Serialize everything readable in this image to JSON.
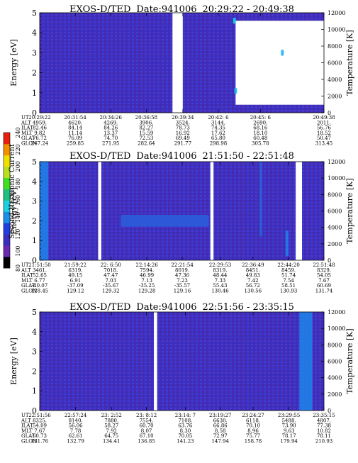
{
  "colorbar": {
    "label": "Second Harmonic Current",
    "ticks": [
      "80",
      "100",
      "120",
      "140",
      "160",
      "180",
      "200",
      "220",
      "240"
    ]
  },
  "panels": [
    {
      "title": "EXOS-D/TED",
      "date": "Date:941006",
      "time_range": "20:29:22 - 20:49:38",
      "ylabel": "Energy [eV]",
      "y2label": "Temperature [K]",
      "yticks": [
        "0",
        "1",
        "2",
        "3",
        "4",
        "5"
      ],
      "y2ticks": [
        "0",
        "2000",
        "4000",
        "6000",
        "8000",
        "10000",
        "12000"
      ],
      "info_rows": [
        {
          "label": "UT",
          "values": [
            "20:29:22",
            "20:31:54",
            "20:34:26",
            "20:36:58",
            "20:39:34",
            "20:42: 6",
            "20:45: 6",
            "20:49:38"
          ]
        },
        {
          "label": "ALT",
          "values": [
            "4959.",
            "4620.",
            "4269.",
            "3906.",
            "3524.",
            "3144.",
            "2690.",
            "2011."
          ]
        },
        {
          "label": "ILAT",
          "values": [
            "82.46",
            "84.14",
            "84.26",
            "82.27",
            "78.73",
            "74.35",
            "68.16",
            "56.76"
          ]
        },
        {
          "label": "MLT",
          "values": [
            "9.82",
            "11.14",
            "13.37",
            "15.59",
            "16.92",
            "17.62",
            "18.10",
            "18.52"
          ]
        },
        {
          "label": "GLAT",
          "values": [
            "76.72",
            "76.09",
            "74.70",
            "72.53",
            "69.49",
            "65.80",
            "60.48",
            "50.47"
          ]
        },
        {
          "label": "GLON",
          "values": [
            "247.24",
            "259.85",
            "271.95",
            "282.64",
            "291.77",
            "298.98",
            "305.78",
            "313.45"
          ]
        }
      ]
    },
    {
      "title": "EXOS-D/TED",
      "date": "Date:941006",
      "time_range": "21:51:50 - 22:51:48",
      "ylabel": "Energy [eV]",
      "y2label": "Temperature [K]",
      "yticks": [
        "0",
        "1",
        "2",
        "3",
        "4",
        "5"
      ],
      "y2ticks": [
        "0",
        "2000",
        "4000",
        "6000",
        "8000",
        "10000",
        "12000"
      ],
      "info_rows": [
        {
          "label": "UT",
          "values": [
            "21:51:50",
            "21:59:22",
            "22: 6:50",
            "22:14:26",
            "22:21:54",
            "22:29:53",
            "22:36:49",
            "22:44:20",
            "22:51:48"
          ]
        },
        {
          "label": "ALT",
          "values": [
            "3461.",
            "6319.",
            "7018.",
            "7594.",
            "8019.",
            "8319.",
            "8451.",
            "8459.",
            "8329."
          ]
        },
        {
          "label": "ILAT",
          "values": [
            "52.65",
            "49.15",
            "47.47",
            "46.99",
            "47.36",
            "48.44",
            "49.83",
            "51.74",
            "54.05"
          ]
        },
        {
          "label": "MLT",
          "values": [
            "6.77",
            "6.91",
            "7.03",
            "7.13",
            "7.23",
            "7.33",
            "7.42",
            "7.54",
            "7.67"
          ]
        },
        {
          "label": "GLAT",
          "values": [
            "-40.07",
            "-37.09",
            "-35.67",
            "-35.25",
            "-35.57",
            "55.43",
            "56.72",
            "58.51",
            "60.69"
          ]
        },
        {
          "label": "GLON",
          "values": [
            "128.45",
            "129.12",
            "129.32",
            "129.28",
            "129.16",
            "130.46",
            "130.56",
            "130.93",
            "131.74"
          ]
        }
      ]
    },
    {
      "title": "EXOS-D/TED",
      "date": "Date:941006",
      "time_range": "22:51:56 - 23:35:15",
      "ylabel": "Energy [eV]",
      "y2label": "Temperature [K]",
      "yticks": [
        "0",
        "1",
        "2",
        "3",
        "4",
        "5"
      ],
      "y2ticks": [
        "0",
        "2000",
        "4000",
        "6000",
        "8000",
        "10000",
        "12000"
      ],
      "info_rows": [
        {
          "label": "UT",
          "values": [
            "22:51:56",
            "22:57:24",
            "23: 2:52",
            "23: 8:12",
            "23:14: 7",
            "23:19:27",
            "23:24:27",
            "23:29:55",
            "23:35:15"
          ]
        },
        {
          "label": "ALT",
          "values": [
            "8325.",
            "8140.",
            "7880.",
            "7554.",
            "7108.",
            "6630.",
            "6118.",
            "5488.",
            "4807."
          ]
        },
        {
          "label": "ILAT",
          "values": [
            "54.09",
            "56.06",
            "58.27",
            "60.70",
            "63.76",
            "66.86",
            "70.10",
            "73.90",
            "77.38"
          ]
        },
        {
          "label": "MLT",
          "values": [
            "7.67",
            "7.78",
            "7.92",
            "8.07",
            "8.30",
            "8.58",
            "8.96",
            "9.63",
            "10.82"
          ]
        },
        {
          "label": "GLAT",
          "values": [
            "60.73",
            "62.61",
            "64.75",
            "67.10",
            "70.05",
            "72.97",
            "75.77",
            "78.17",
            "78.11"
          ]
        },
        {
          "label": "GLON",
          "values": [
            "131.76",
            "132.79",
            "134.41",
            "136.85",
            "141.23",
            "147.94",
            "158.78",
            "179.94",
            "210.93"
          ]
        }
      ]
    }
  ],
  "chart_data": [
    {
      "type": "heatmap",
      "title": "EXOS-D/TED Date:941006 20:29:22 - 20:49:38",
      "xlabel": "",
      "ylabel": "Energy [eV]",
      "y2label": "Temperature [K]",
      "ylim": [
        0,
        5
      ],
      "y2lim": [
        0,
        12000
      ],
      "x_tick_labels": [
        "20:29:22",
        "20:31:54",
        "20:34:26",
        "20:36:58",
        "20:39:34",
        "20:42: 6",
        "20:45: 6",
        "20:49:38"
      ],
      "colorbar": {
        "label": "Second Harmonic Current",
        "range": [
          80,
          240
        ]
      },
      "data_gaps_ut": [
        [
          "20:38:50",
          "20:39:34"
        ]
      ],
      "background_level": 145,
      "features": [
        {
          "description": "no data (white) from ~20:43 onward over much of energy range",
          "ut_start": "20:43:20",
          "ut_end": "20:49:38",
          "energy_range": [
            0.4,
            4.6
          ],
          "value": null
        },
        {
          "description": "enhancement near 20:43",
          "ut": "20:43:15",
          "energy": 4.6,
          "value": 225
        },
        {
          "description": "enhancement near 20:46",
          "ut": "20:46:40",
          "energy": 3.0,
          "value": 205
        },
        {
          "description": "enhancement near 20:43:20 low energy",
          "ut": "20:43:20",
          "energy": 1.1,
          "value": 200
        }
      ]
    },
    {
      "type": "heatmap",
      "title": "EXOS-D/TED Date:941006 21:51:50 - 22:51:48",
      "xlabel": "",
      "ylabel": "Energy [eV]",
      "y2label": "Temperature [K]",
      "ylim": [
        0,
        5
      ],
      "y2lim": [
        0,
        12000
      ],
      "x_tick_labels": [
        "21:51:50",
        "21:59:22",
        "22: 6:50",
        "22:14:26",
        "22:21:54",
        "22:29:53",
        "22:36:49",
        "22:44:20",
        "22:51:48"
      ],
      "colorbar": {
        "label": "Second Harmonic Current",
        "range": [
          80,
          240
        ]
      },
      "data_gaps_ut": [
        [
          "22:04:10",
          "22:04:50"
        ],
        [
          "22:27:50",
          "22:28:30"
        ],
        [
          "22:45:50",
          "22:47:10"
        ]
      ],
      "background_level": 145,
      "features": [
        {
          "description": "enhanced band at start of pass",
          "ut_start": "21:51:50",
          "ut_end": "21:53:40",
          "energy_range": [
            0,
            5
          ],
          "value": 175
        },
        {
          "description": "enhanced band near 2 eV",
          "ut_start": "22:09:00",
          "ut_end": "22:27:30",
          "energy_range": [
            1.7,
            2.3
          ],
          "value": 160
        },
        {
          "description": "enhancement near 22:38",
          "ut": "22:38:30",
          "energy_range": [
            1.2,
            5
          ],
          "value": 165
        },
        {
          "description": "enhancement near 22:44",
          "ut": "22:44:00",
          "energy_range": [
            0.2,
            1.5
          ],
          "value": 175
        }
      ]
    },
    {
      "type": "heatmap",
      "title": "EXOS-D/TED Date:941006 22:51:56 - 23:35:15",
      "xlabel": "",
      "ylabel": "Energy [eV]",
      "y2label": "Temperature [K]",
      "ylim": [
        0,
        5
      ],
      "y2lim": [
        0,
        12000
      ],
      "x_tick_labels": [
        "22:51:56",
        "22:57:24",
        "23: 2:52",
        "23: 8:12",
        "23:14: 7",
        "23:19:27",
        "23:24:27",
        "23:29:55",
        "23:35:15"
      ],
      "colorbar": {
        "label": "Second Harmonic Current",
        "range": [
          80,
          240
        ]
      },
      "data_gaps_ut": [
        [
          "23:09:20",
          "23:09:50"
        ]
      ],
      "background_level": 145,
      "features": [
        {
          "description": "enhancement near end of pass",
          "ut_start": "23:31:30",
          "ut_end": "23:33:30",
          "energy_range": [
            0,
            5
          ],
          "value": 180
        }
      ]
    }
  ]
}
